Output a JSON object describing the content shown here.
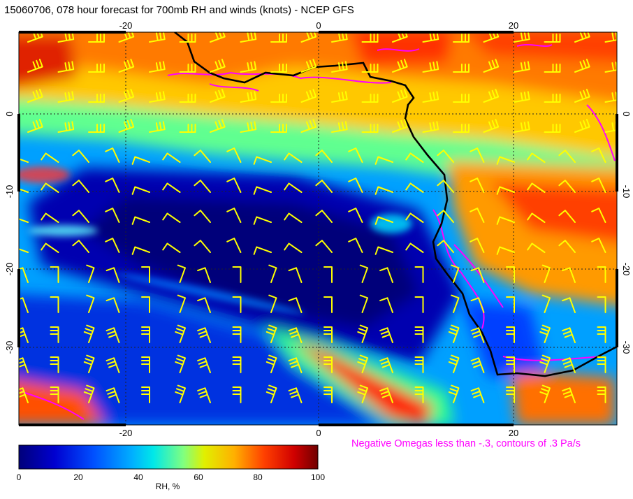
{
  "title": "15060706, 078 hour forecast for 700mb RH and winds (knots) - NCEP GFS",
  "map": {
    "lon_ticks": [
      "-20",
      "0",
      "20"
    ],
    "lat_ticks": [
      "0",
      "-10",
      "-20",
      "-30"
    ],
    "lon_values": [
      -20,
      0,
      20
    ],
    "lat_values": [
      0,
      -10,
      -20,
      -30
    ],
    "lon_range": [
      -30,
      31
    ],
    "lat_range": [
      -39.5,
      10.5
    ],
    "barb_color": "#ffff00",
    "omega_color": "#ff00ff",
    "coast_color": "#000000"
  },
  "omega_note": "Negative Omegas less than -.3, contours of .3 Pa/s",
  "colorbar": {
    "label": "RH, %",
    "ticks": [
      "0",
      "20",
      "40",
      "60",
      "80",
      "100"
    ],
    "tick_values": [
      0,
      20,
      40,
      60,
      80,
      100
    ],
    "range": [
      0,
      100
    ],
    "colors": [
      "#00008f",
      "#0000ff",
      "#0080ff",
      "#00ffff",
      "#80ff80",
      "#ffff00",
      "#ff8000",
      "#ff0000",
      "#800000"
    ]
  }
}
